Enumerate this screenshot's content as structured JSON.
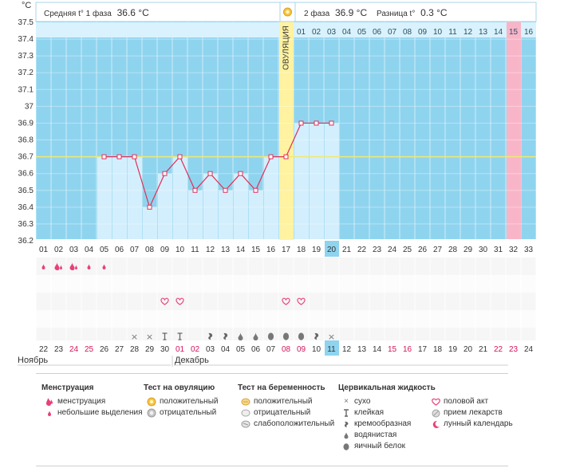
{
  "header": {
    "phase1_label": "Средняя t° 1 фаза",
    "phase1_value": "36.6 °C",
    "phase2_label": "2 фаза",
    "phase2_value": "36.9 °C",
    "diff_label": "Разница t°",
    "diff_value": "0.3 °C",
    "unit": "°C",
    "ovulation_label": "ОВУЛЯЦИЯ"
  },
  "months": {
    "left": "Ноябрь",
    "right": "Декабрь"
  },
  "chart_data": {
    "type": "line",
    "x": [
      "01",
      "02",
      "03",
      "04",
      "05",
      "06",
      "07",
      "08",
      "09",
      "10",
      "11",
      "12",
      "13",
      "14",
      "15",
      "16",
      "17",
      "18",
      "19",
      "20",
      "21",
      "22",
      "23",
      "24",
      "25",
      "26",
      "27",
      "28",
      "29",
      "30",
      "31",
      "32",
      "33"
    ],
    "cycle_days_top": [
      "01",
      "02",
      "03",
      "04",
      "05",
      "06",
      "07",
      "08",
      "09",
      "10",
      "11",
      "12",
      "13",
      "14",
      "15",
      "16"
    ],
    "y": [
      null,
      null,
      null,
      null,
      36.7,
      36.7,
      36.7,
      36.4,
      36.6,
      36.7,
      36.5,
      36.6,
      36.5,
      36.6,
      36.5,
      36.7,
      36.7,
      36.9,
      36.9,
      36.9,
      null,
      null,
      null,
      null,
      null,
      null,
      null,
      null,
      null,
      null,
      null,
      null,
      null
    ],
    "ylabel": "°C",
    "ylim": [
      36.2,
      37.5
    ],
    "yticks": [
      "37.5",
      "37.4",
      "37.3",
      "37.2",
      "37.1",
      "37",
      "36.9",
      "36.8",
      "36.7",
      "36.6",
      "36.5",
      "36.4",
      "36.3",
      "36.2"
    ],
    "coverline": 36.7,
    "ovulation_day": "17",
    "current_day": "20",
    "highlight_day": "32",
    "highlight_top_day": "15",
    "dates": [
      "22",
      "23",
      "24",
      "25",
      "26",
      "27",
      "28",
      "29",
      "30",
      "01",
      "02",
      "03",
      "04",
      "05",
      "06",
      "07",
      "08",
      "09",
      "10",
      "11",
      "12",
      "13",
      "14",
      "15",
      "16",
      "17",
      "18",
      "19",
      "20",
      "21",
      "22",
      "23",
      "24"
    ],
    "red_date_indices": [
      2,
      3,
      9,
      10,
      16,
      17,
      23,
      24,
      30,
      31
    ],
    "current_date_index": 19,
    "grid": true,
    "colors": {
      "plot_bg": "#8fd4ef",
      "bar_fill": "#d3effd",
      "ovulation": "#fff2a0",
      "highlight": "#f9b5c8",
      "line": "#e0305a",
      "coverline": "#f0e970",
      "current_day_bg": "#8fd4ef",
      "red_text": "#d4145a"
    }
  },
  "symbols": {
    "menstruation_days": [
      0,
      1,
      2,
      3,
      4
    ],
    "menstruation_types": [
      "small",
      "heavy",
      "heavy",
      "small",
      "small"
    ],
    "sex_days": [
      8,
      9,
      16,
      17
    ],
    "fluid": [
      {
        "day": 6,
        "type": "dry"
      },
      {
        "day": 7,
        "type": "dry"
      },
      {
        "day": 8,
        "type": "sticky"
      },
      {
        "day": 9,
        "type": "sticky"
      },
      {
        "day": 11,
        "type": "creamy"
      },
      {
        "day": 12,
        "type": "creamy"
      },
      {
        "day": 13,
        "type": "watery"
      },
      {
        "day": 14,
        "type": "watery"
      },
      {
        "day": 15,
        "type": "eggwhite"
      },
      {
        "day": 16,
        "type": "eggwhite"
      },
      {
        "day": 17,
        "type": "eggwhite"
      },
      {
        "day": 18,
        "type": "creamy"
      },
      {
        "day": 19,
        "type": "dry"
      }
    ]
  },
  "legend": {
    "menstruation": {
      "title": "Менструация",
      "items": [
        {
          "icon": "menstruation-icon",
          "label": "менструация"
        },
        {
          "icon": "spotting-icon",
          "label": "небольшие выделения"
        }
      ]
    },
    "ovulation_test": {
      "title": "Тест на овуляцию",
      "items": [
        {
          "icon": "positive-ovulation-icon",
          "label": "положительный"
        },
        {
          "icon": "negative-ovulation-icon",
          "label": "отрицательный"
        }
      ]
    },
    "pregnancy_test": {
      "title": "Тест на беременность",
      "items": [
        {
          "icon": "positive-pregnancy-icon",
          "label": "положительный"
        },
        {
          "icon": "negative-pregnancy-icon",
          "label": "отрицательный"
        },
        {
          "icon": "weak-positive-pregnancy-icon",
          "label": "слабоположительный"
        }
      ]
    },
    "fluid": {
      "title": "Цервикальная жидкость",
      "items": [
        {
          "icon": "dry-icon",
          "label": "сухо"
        },
        {
          "icon": "sticky-icon",
          "label": "клейкая"
        },
        {
          "icon": "creamy-icon",
          "label": "кремообразная"
        },
        {
          "icon": "watery-icon",
          "label": "водянистая"
        },
        {
          "icon": "eggwhite-icon",
          "label": "яичный белок"
        }
      ]
    },
    "other": {
      "items": [
        {
          "icon": "heart-icon",
          "label": "половой акт"
        },
        {
          "icon": "pill-icon",
          "label": "прием лекарств"
        },
        {
          "icon": "moon-icon",
          "label": "лунный календарь"
        }
      ]
    }
  }
}
